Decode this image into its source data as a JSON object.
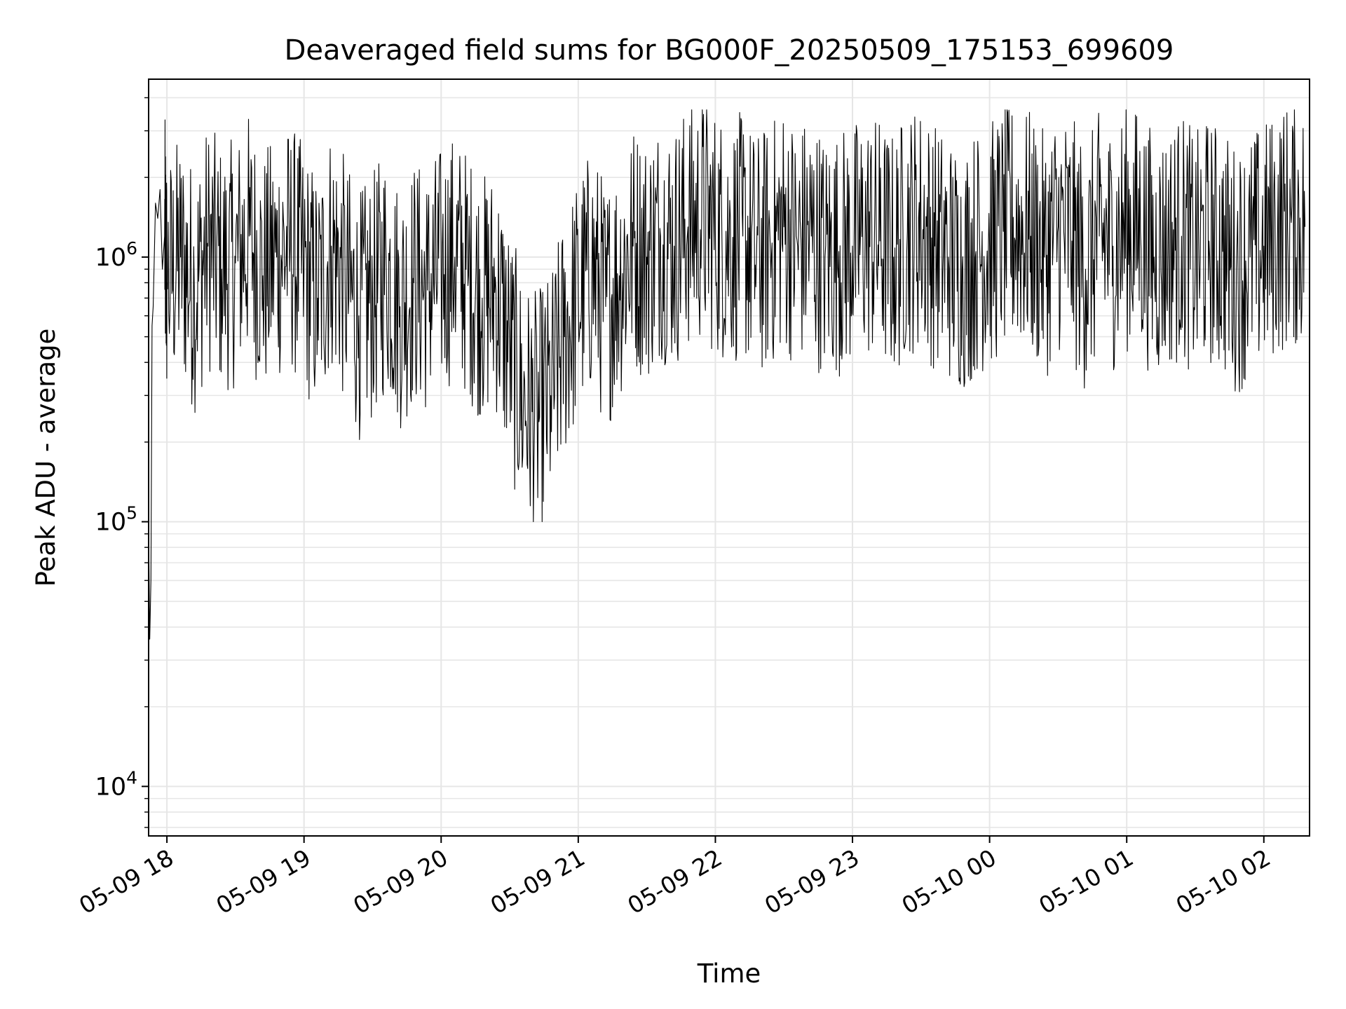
{
  "chart_data": {
    "type": "line",
    "title": "Deaveraged field sums for BG000F_20250509_175153_699609",
    "xlabel": "Time",
    "ylabel": "Peak ADU - average",
    "yscale": "log",
    "xlim": [
      "2025-05-09 17:52:00",
      "2025-05-10 02:20:00"
    ],
    "ylim": [
      6500,
      4700000
    ],
    "x_ticks": [
      {
        "label": "05-09 18",
        "value": "2025-05-09 18:00:00"
      },
      {
        "label": "05-09 19",
        "value": "2025-05-09 19:00:00"
      },
      {
        "label": "05-09 20",
        "value": "2025-05-09 20:00:00"
      },
      {
        "label": "05-09 21",
        "value": "2025-05-09 21:00:00"
      },
      {
        "label": "05-09 22",
        "value": "2025-05-09 22:00:00"
      },
      {
        "label": "05-09 23",
        "value": "2025-05-09 23:00:00"
      },
      {
        "label": "05-10 00",
        "value": "2025-05-10 00:00:00"
      },
      {
        "label": "05-10 01",
        "value": "2025-05-10 01:00:00"
      },
      {
        "label": "05-10 02",
        "value": "2025-05-10 02:00:00"
      }
    ],
    "y_ticks": [
      {
        "base": "10",
        "exp": "4",
        "value": 10000
      },
      {
        "base": "10",
        "exp": "5",
        "value": 100000
      },
      {
        "base": "10",
        "exp": "6",
        "value": 1000000
      }
    ],
    "grid": true,
    "line_color": "#000000",
    "grid_color": "#e6e6e6",
    "series": [
      {
        "values_time": [
          "2025-05-09 17:52:00",
          "2025-05-09 17:52:30",
          "2025-05-09 17:53:00",
          "2025-05-09 17:53:30",
          "2025-05-09 17:54:00",
          "2025-05-09 17:55:00",
          "2025-05-09 17:56:00",
          "2025-05-09 17:57:00",
          "2025-05-09 17:58:00",
          "2025-05-09 17:59:00",
          "2025-05-09 18:00:00",
          "2025-05-09 18:06:00",
          "2025-05-09 18:12:00",
          "2025-05-09 18:18:00",
          "2025-05-09 18:24:00",
          "2025-05-09 18:30:00",
          "2025-05-09 18:36:00",
          "2025-05-09 18:42:00",
          "2025-05-09 18:48:00",
          "2025-05-09 18:54:00",
          "2025-05-09 19:00:00",
          "2025-05-09 19:06:00",
          "2025-05-09 19:12:00",
          "2025-05-09 19:18:00",
          "2025-05-09 19:24:00",
          "2025-05-09 19:30:00",
          "2025-05-09 19:36:00",
          "2025-05-09 19:42:00",
          "2025-05-09 19:48:00",
          "2025-05-09 19:54:00",
          "2025-05-09 20:00:00",
          "2025-05-09 20:06:00",
          "2025-05-09 20:12:00",
          "2025-05-09 20:18:00",
          "2025-05-09 20:24:00",
          "2025-05-09 20:30:00",
          "2025-05-09 20:36:00",
          "2025-05-09 20:42:00",
          "2025-05-09 20:48:00",
          "2025-05-09 20:54:00",
          "2025-05-09 21:00:00",
          "2025-05-09 21:06:00",
          "2025-05-09 21:12:00",
          "2025-05-09 21:18:00",
          "2025-05-09 21:24:00",
          "2025-05-09 21:30:00",
          "2025-05-09 21:36:00",
          "2025-05-09 21:42:00",
          "2025-05-09 21:48:00",
          "2025-05-09 21:54:00",
          "2025-05-09 22:00:00",
          "2025-05-09 22:06:00",
          "2025-05-09 22:12:00",
          "2025-05-09 22:18:00",
          "2025-05-09 22:24:00",
          "2025-05-09 22:30:00",
          "2025-05-09 22:36:00",
          "2025-05-09 22:42:00",
          "2025-05-09 22:48:00",
          "2025-05-09 22:54:00",
          "2025-05-09 23:00:00",
          "2025-05-09 23:06:00",
          "2025-05-09 23:12:00",
          "2025-05-09 23:18:00",
          "2025-05-09 23:24:00",
          "2025-05-09 23:30:00",
          "2025-05-09 23:36:00",
          "2025-05-09 23:42:00",
          "2025-05-09 23:48:00",
          "2025-05-09 23:54:00",
          "2025-05-10 00:00:00",
          "2025-05-10 00:06:00",
          "2025-05-10 00:12:00",
          "2025-05-10 00:18:00",
          "2025-05-10 00:24:00",
          "2025-05-10 00:30:00",
          "2025-05-10 00:36:00",
          "2025-05-10 00:42:00",
          "2025-05-10 00:48:00",
          "2025-05-10 00:54:00",
          "2025-05-10 01:00:00",
          "2025-05-10 01:06:00",
          "2025-05-10 01:12:00",
          "2025-05-10 01:18:00",
          "2025-05-10 01:24:00",
          "2025-05-10 01:30:00",
          "2025-05-10 01:36:00",
          "2025-05-10 01:42:00",
          "2025-05-10 01:48:00",
          "2025-05-10 01:54:00",
          "2025-05-10 02:00:00",
          "2025-05-10 02:06:00",
          "2025-05-10 02:12:00",
          "2025-05-10 02:18:00"
        ],
        "values": [
          95000,
          36000,
          60000,
          550000,
          650000,
          1600000,
          1400000,
          1800000,
          900000,
          1200000,
          800000,
          1000000,
          750000,
          1100000,
          900000,
          950000,
          1200000,
          850000,
          1000000,
          1100000,
          900000,
          700000,
          1100000,
          800000,
          600000,
          700000,
          900000,
          650000,
          800000,
          750000,
          900000,
          1000000,
          850000,
          700000,
          750000,
          450000,
          280000,
          250000,
          300000,
          500000,
          700000,
          900000,
          650000,
          850000,
          1100000,
          1000000,
          1200000,
          1100000,
          1300000,
          1400000,
          1250000,
          1150000,
          1200000,
          1000000,
          1100000,
          1300000,
          1100000,
          1200000,
          1000000,
          1050000,
          1100000,
          1200000,
          1150000,
          1000000,
          1250000,
          1300000,
          1100000,
          1000000,
          900000,
          1050000,
          1100000,
          1250000,
          1300000,
          1200000,
          1000000,
          1300000,
          1150000,
          900000,
          1200000,
          1100000,
          1300000,
          1250000,
          1000000,
          1100000,
          1200000,
          1000000,
          1150000,
          1050000,
          900000,
          1000000,
          1100000,
          1250000,
          1350000,
          1300000
        ]
      }
    ]
  }
}
